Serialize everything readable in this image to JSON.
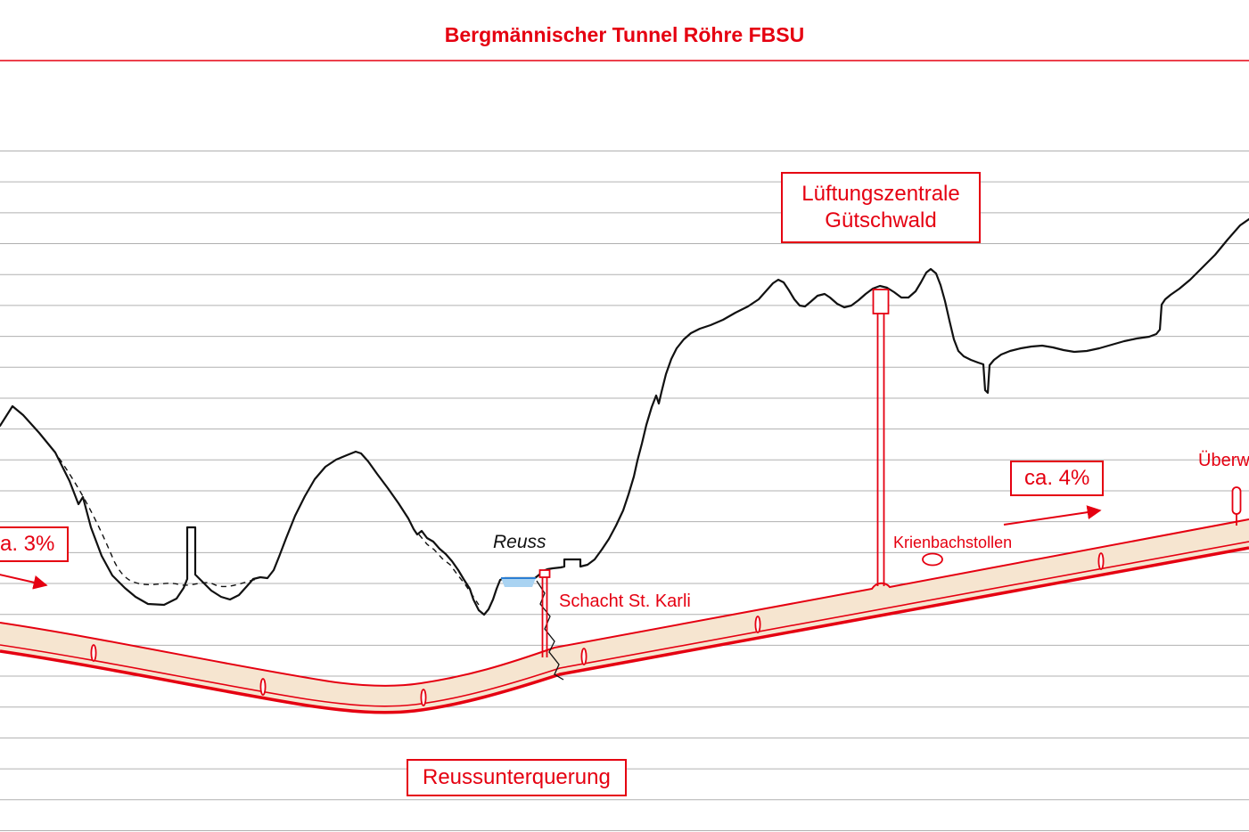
{
  "title": "Bergmännischer Tunnel Röhre FBSU",
  "boxes": {
    "ventilation": {
      "line1": "Lüftungszentrale",
      "line2": "Gütschwald"
    },
    "gradient_right": "ca. 4%",
    "gradient_left": "a. 3%",
    "river_crossing": "Reussunterquerung"
  },
  "annotations": {
    "river": "Reuss",
    "shaft_st_karli": "Schacht St. Karli",
    "krienbach_adit": "Krienbachstollen",
    "right_edge_clipped": "Überw"
  },
  "colors": {
    "red": "#e50011",
    "tunnel_fill": "#f6e5d0",
    "terrain": "#111111",
    "grid": "#b0b0b0",
    "water_fill": "#a9d3f2",
    "water_edge": "#2b7fd4"
  }
}
